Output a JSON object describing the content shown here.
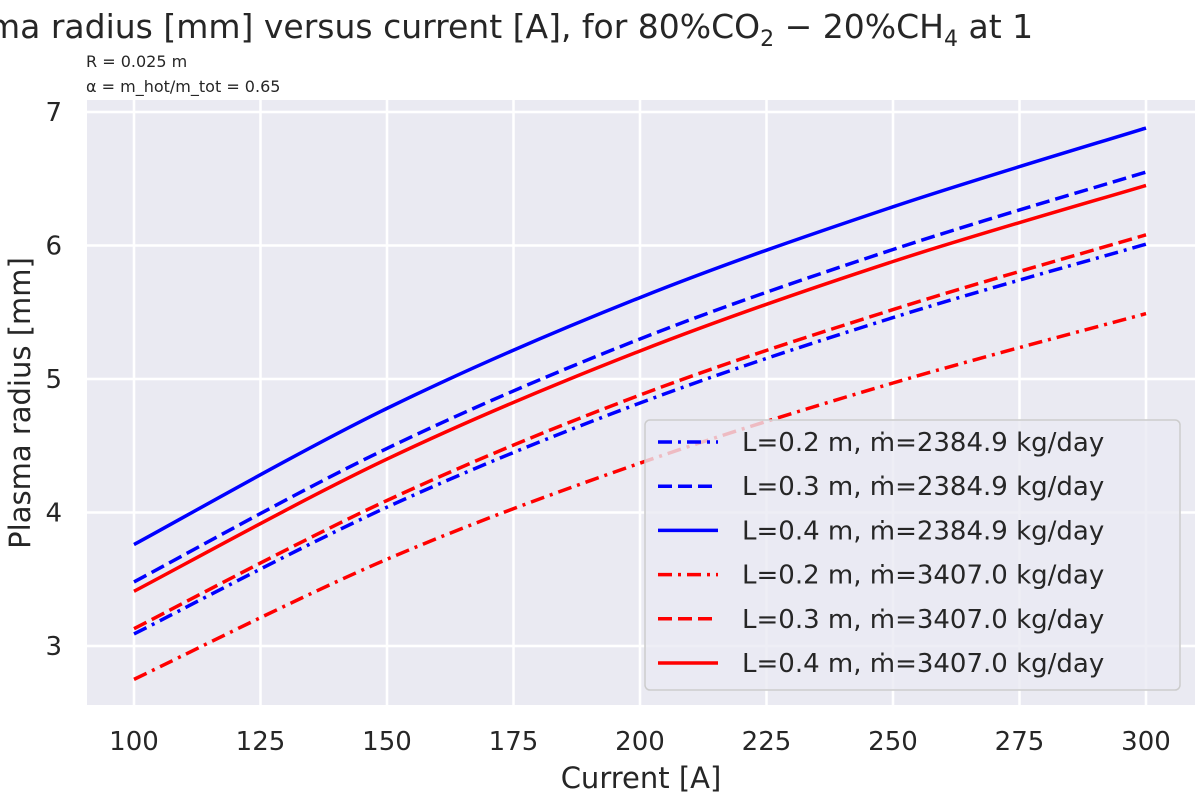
{
  "chart_data": {
    "type": "line",
    "title_segments": {
      "a": "ma radius [mm] versus current [A], for 80%CO",
      "sub1": "2",
      "b": " − 20%CH",
      "sub2": "4",
      "c": " at 1"
    },
    "annotations": [
      "R = 0.025 m",
      "α = m_hot/m_tot = 0.65"
    ],
    "xlabel": "Current [A]",
    "ylabel": "Plasma radius [mm]",
    "xlim": [
      90,
      300
    ],
    "ylim": [
      2.55,
      7.1
    ],
    "xticks": [
      "100",
      "125",
      "150",
      "175",
      "200",
      "225",
      "250",
      "275",
      "300"
    ],
    "yticks": [
      "3",
      "4",
      "5",
      "6",
      "7"
    ],
    "grid": true,
    "legend_position": "lower-right",
    "x": [
      100,
      150,
      200,
      250,
      300
    ],
    "series": [
      {
        "name": "L=0.2 m, ṁ=2384.9 kg/day",
        "color": "#0000ff",
        "style": "dashdot",
        "values": [
          3.09,
          4.04,
          4.82,
          5.46,
          6.01
        ]
      },
      {
        "name": "L=0.3 m, ṁ=2384.9 kg/day",
        "color": "#0000ff",
        "style": "dashed",
        "values": [
          3.48,
          4.48,
          5.3,
          5.97,
          6.55
        ]
      },
      {
        "name": "L=0.4 m, ṁ=2384.9 kg/day",
        "color": "#0000ff",
        "style": "solid",
        "values": [
          3.76,
          4.78,
          5.61,
          6.29,
          6.88
        ]
      },
      {
        "name": "L=0.2 m, ṁ=3407.0 kg/day",
        "color": "#ff0000",
        "style": "dashdot",
        "values": [
          2.75,
          3.65,
          4.37,
          4.97,
          5.49
        ]
      },
      {
        "name": "L=0.3 m, ṁ=3407.0 kg/day",
        "color": "#ff0000",
        "style": "dashed",
        "values": [
          3.13,
          4.09,
          4.88,
          5.52,
          6.08
        ]
      },
      {
        "name": "L=0.4 m, ṁ=3407.0 kg/day",
        "color": "#ff0000",
        "style": "solid",
        "values": [
          3.41,
          4.4,
          5.21,
          5.88,
          6.45
        ]
      }
    ]
  }
}
